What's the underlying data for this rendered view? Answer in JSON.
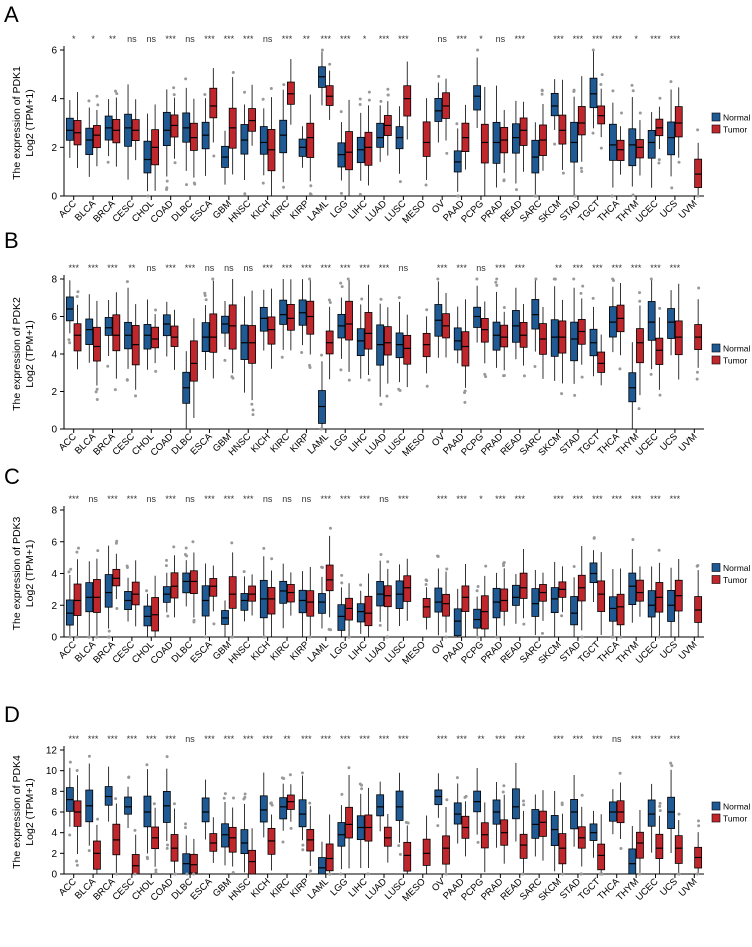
{
  "chart_data": [
    {
      "type": "box",
      "panel_label": "A",
      "ylabel_line1": "The expression of PDK1",
      "ylabel_line2": "Log2 (TPM+1)",
      "ylim": [
        0,
        6
      ],
      "yticks": [
        0,
        2,
        4,
        6
      ],
      "legend": {
        "placement": "right",
        "entries": [
          "Normal",
          "Tumor"
        ]
      },
      "series_colors": {
        "Normal": "#1f5a94",
        "Tumor": "#c0272d"
      },
      "categories": [
        "ACC",
        "BLCA",
        "BRCA",
        "CESC",
        "CHOL",
        "COAD",
        "DLBC",
        "ESCA",
        "GBM",
        "HNSC",
        "KICH",
        "KIRC",
        "KIRP",
        "LAML",
        "LGG",
        "LIHC",
        "LUAD",
        "LUSC",
        "MESO",
        "OV",
        "PAAD",
        "PCPG",
        "PRAD",
        "READ",
        "SARC",
        "SKCM",
        "STAD",
        "TGCT",
        "THCA",
        "THYM",
        "UCEC",
        "UCS",
        "UVM"
      ],
      "significance": [
        "*",
        "*",
        "**",
        "ns",
        "ns",
        "***",
        "ns",
        "***",
        "***",
        "***",
        "ns",
        "***",
        "**",
        "***",
        "***",
        "*",
        "***",
        "***",
        "",
        "ns",
        "***",
        "*",
        "ns",
        "***",
        "",
        "***",
        "***",
        "***",
        "***",
        "*",
        "***",
        "***",
        ""
      ],
      "normal_median": [
        2.7,
        2.3,
        2.8,
        2.8,
        1.5,
        2.7,
        2.8,
        2.5,
        1.6,
        2.3,
        2.2,
        2.5,
        2.0,
        4.9,
        1.7,
        1.9,
        2.4,
        2.4,
        null,
        3.5,
        1.4,
        4.1,
        2.2,
        2.4,
        1.6,
        3.7,
        2.2,
        4.2,
        2.1,
        2.1,
        2.2,
        2.4,
        null
      ],
      "tumor_median": [
        2.6,
        2.5,
        2.7,
        2.7,
        2.0,
        2.9,
        2.4,
        3.7,
        2.8,
        3.1,
        1.9,
        4.2,
        2.4,
        4.1,
        1.8,
        2.0,
        2.9,
        4.0,
        2.2,
        3.7,
        2.4,
        2.2,
        2.3,
        2.7,
        2.3,
        2.7,
        3.0,
        3.3,
        1.9,
        2.0,
        2.8,
        3.0,
        0.9
      ]
    },
    {
      "type": "box",
      "panel_label": "B",
      "ylabel_line1": "The expression of PDK2",
      "ylabel_line2": "Log2 (TPM+1)",
      "ylim": [
        0,
        8
      ],
      "yticks": [
        0,
        2,
        4,
        6,
        8
      ],
      "legend": {
        "placement": "right",
        "entries": [
          "Normal",
          "Tumor"
        ]
      },
      "series_colors": {
        "Normal": "#1f5a94",
        "Tumor": "#c0272d"
      },
      "categories": [
        "ACC",
        "BLCA",
        "BRCA",
        "CESC",
        "CHOL",
        "COAD",
        "DLBC",
        "ESCA",
        "GBM",
        "HNSC",
        "KICH",
        "KIRC",
        "KIRP",
        "LAML",
        "LGG",
        "LIHC",
        "LUAD",
        "LUSC",
        "MESO",
        "OV",
        "PAAD",
        "PCPG",
        "PRAD",
        "READ",
        "SARC",
        "SKCM",
        "STAD",
        "TGCT",
        "THCA",
        "THYM",
        "UCEC",
        "UCS",
        "UVM"
      ],
      "significance": [
        "***",
        "***",
        "***",
        "**",
        "ns",
        "***",
        "***",
        "ns",
        "ns",
        "ns",
        "***",
        "***",
        "***",
        "***",
        "***",
        "***",
        "***",
        "ns",
        "",
        "***",
        "***",
        "ns",
        "***",
        "***",
        "",
        "**",
        "***",
        "***",
        "***",
        "***",
        "***",
        "***",
        ""
      ],
      "normal_median": [
        6.4,
        5.3,
        5.4,
        5.0,
        5.0,
        5.6,
        2.2,
        4.9,
        5.6,
        4.6,
        5.9,
        6.1,
        6.2,
        1.2,
        5.5,
        4.7,
        4.5,
        4.5,
        null,
        5.8,
        4.7,
        6.0,
        5.0,
        5.5,
        6.1,
        4.9,
        4.8,
        4.6,
        5.7,
        2.2,
        5.7,
        5.7,
        null
      ],
      "tumor_median": [
        5.0,
        4.4,
        5.0,
        4.5,
        4.8,
        4.9,
        3.5,
        4.9,
        5.5,
        4.6,
        5.3,
        5.9,
        6.0,
        4.6,
        5.6,
        5.1,
        4.6,
        4.3,
        4.5,
        5.5,
        4.4,
        5.3,
        4.9,
        5.0,
        4.8,
        4.9,
        5.2,
        3.5,
        5.9,
        4.6,
        4.2,
        4.9,
        4.9
      ]
    },
    {
      "type": "box",
      "panel_label": "C",
      "ylabel_line1": "The expression of PDK3",
      "ylabel_line2": "Log2 (TPM+1)",
      "ylim": [
        0,
        8
      ],
      "yticks": [
        0,
        2,
        4,
        6,
        8
      ],
      "legend": {
        "placement": "right",
        "entries": [
          "Normal",
          "Tumor"
        ]
      },
      "series_colors": {
        "Normal": "#1f5a94",
        "Tumor": "#c0272d"
      },
      "categories": [
        "ACC",
        "BLCA",
        "BRCA",
        "CESC",
        "CHOL",
        "COAD",
        "DLBC",
        "ESCA",
        "GBM",
        "HNSC",
        "KICH",
        "KIRC",
        "KIRP",
        "LAML",
        "LGG",
        "LIHC",
        "LUAD",
        "LUSC",
        "MESO",
        "OV",
        "PAAD",
        "PCPG",
        "PRAD",
        "READ",
        "SARC",
        "SKCM",
        "STAD",
        "TGCT",
        "THCA",
        "THYM",
        "UCEC",
        "UCS",
        "UVM"
      ],
      "significance": [
        "***",
        "ns",
        "***",
        "***",
        "ns",
        "***",
        "ns",
        "***",
        "***",
        "***",
        "ns",
        "ns",
        "ns",
        "***",
        "***",
        "***",
        "ns",
        "***",
        "",
        "***",
        "***",
        "*",
        "***",
        "***",
        "",
        "***",
        "***",
        "***",
        "***",
        "***",
        "***",
        "***",
        ""
      ],
      "normal_median": [
        1.5,
        2.5,
        2.8,
        2.3,
        1.3,
        2.7,
        3.5,
        2.3,
        1.2,
        2.3,
        2.4,
        2.9,
        2.3,
        2.2,
        1.3,
        1.6,
        2.7,
        2.7,
        null,
        2.2,
        1.0,
        1.1,
        2.2,
        2.5,
        2.1,
        2.4,
        1.5,
        4.0,
        1.8,
        3.2,
        2.0,
        2.0,
        null
      ],
      "tumor_median": [
        2.3,
        2.5,
        3.7,
        2.7,
        1.4,
        3.2,
        3.5,
        3.2,
        2.7,
        2.7,
        2.4,
        2.8,
        2.2,
        3.6,
        1.8,
        1.5,
        2.6,
        3.1,
        1.9,
        2.1,
        2.5,
        1.6,
        2.3,
        3.1,
        2.8,
        3.0,
        3.1,
        2.7,
        1.9,
        2.8,
        2.5,
        2.6,
        1.7
      ]
    },
    {
      "type": "box",
      "panel_label": "D",
      "ylabel_line1": "The expression of PDK4",
      "ylabel_line2": "Log2 (TPM+1)",
      "ylim": [
        0,
        12
      ],
      "yticks": [
        0,
        2,
        4,
        6,
        8,
        10,
        12
      ],
      "legend": {
        "placement": "right",
        "entries": [
          "Normal",
          "Tumor"
        ]
      },
      "series_colors": {
        "Normal": "#1f5a94",
        "Tumor": "#c0272d"
      },
      "categories": [
        "ACC",
        "BLCA",
        "BRCA",
        "CESC",
        "CHOL",
        "COAD",
        "DLBC",
        "ESCA",
        "GBM",
        "HNSC",
        "KICH",
        "KIRC",
        "KIRP",
        "LAML",
        "LGG",
        "LIHC",
        "LUAD",
        "LUSC",
        "MESO",
        "OV",
        "PAAD",
        "PCPG",
        "PRAD",
        "READ",
        "SARC",
        "SKCM",
        "STAD",
        "TGCT",
        "THCA",
        "THYM",
        "UCEC",
        "UCS",
        "UVM"
      ],
      "significance": [
        "***",
        "***",
        "***",
        "***",
        "***",
        "***",
        "ns",
        "***",
        "***",
        "***",
        "***",
        "**",
        "***",
        "***",
        "***",
        "***",
        "***",
        "***",
        "",
        "***",
        "***",
        "**",
        "***",
        "***",
        "",
        "***",
        "***",
        "***",
        "ns",
        "***",
        "***",
        "***",
        ""
      ],
      "normal_median": [
        7.2,
        6.6,
        7.5,
        6.5,
        6.0,
        6.6,
        1.0,
        6.0,
        3.8,
        3.0,
        6.2,
        6.5,
        5.8,
        0.6,
        3.8,
        4.5,
        6.5,
        6.5,
        null,
        7.5,
        5.8,
        7.0,
        6.0,
        6.5,
        4.8,
        4.3,
        6.0,
        4.0,
        6.0,
        1.0,
        5.8,
        6.0,
        null
      ],
      "tumor_median": [
        6.0,
        2.0,
        3.3,
        0.8,
        3.5,
        2.5,
        0.9,
        3.0,
        3.5,
        1.2,
        3.2,
        7.0,
        3.3,
        1.5,
        4.8,
        4.5,
        3.5,
        1.8,
        2.0,
        2.5,
        4.5,
        3.8,
        4.0,
        2.8,
        5.0,
        2.5,
        3.5,
        1.8,
        6.0,
        3.0,
        2.5,
        2.5,
        1.6
      ]
    }
  ]
}
